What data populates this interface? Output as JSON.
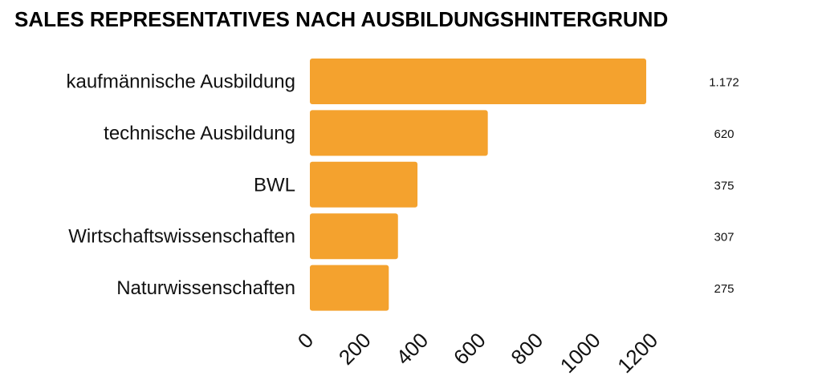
{
  "chart_data": {
    "type": "bar",
    "orientation": "horizontal",
    "title": "SALES REPRESENTATIVES NACH AUSBILDUNGSHINTERGRUND",
    "categories": [
      "kaufmännische Ausbildung",
      "technische Ausbildung",
      "BWL",
      "Wirtschaftswissenschaften",
      "Naturwissenschaften"
    ],
    "values": [
      1172,
      620,
      375,
      307,
      275
    ],
    "value_labels": [
      "1.172",
      "620",
      "375",
      "307",
      "275"
    ],
    "xticks": [
      "0",
      "200",
      "400",
      "600",
      "800",
      "1000",
      "1200"
    ],
    "xlim": [
      0,
      1200
    ],
    "xlabel": "",
    "ylabel": "",
    "grid": false,
    "bar_color": "#F4A22E"
  }
}
